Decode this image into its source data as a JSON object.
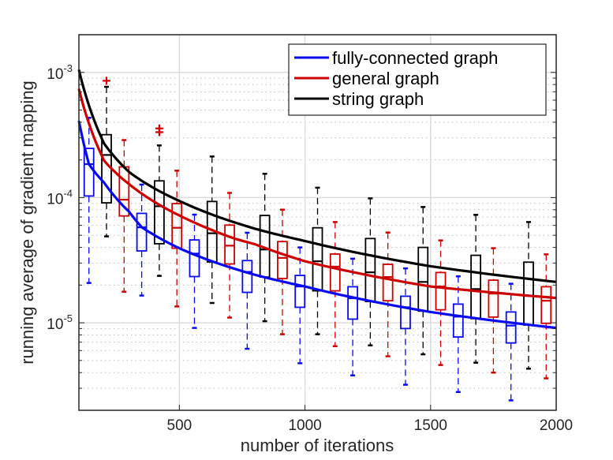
{
  "chart_data": {
    "type": "box",
    "xlabel": "number of iterations",
    "ylabel": "running average of gradient mapping",
    "xlim": [
      100,
      2000
    ],
    "ylim": [
      2e-06,
      0.002
    ],
    "yscale": "log",
    "grid": "major solid, minor dotted",
    "legend_placement": "top-right",
    "x_ticks": [
      500,
      1000,
      1500,
      2000
    ],
    "x_tick_labels": [
      "500",
      "1000",
      "1500",
      "2000"
    ],
    "y_ticks": [
      1e-05,
      0.0001,
      0.001
    ],
    "y_tick_labels": [
      {
        "base": "10",
        "exp": "-5"
      },
      {
        "base": "10",
        "exp": "-4"
      },
      {
        "base": "10",
        "exp": "-3"
      }
    ],
    "outlier_color": "#d40000",
    "series": [
      {
        "name": "fully-connected graph",
        "color": "#0a0aee",
        "curve": {
          "x": [
            100,
            140,
            200,
            300,
            350,
            500,
            560,
            800,
            1000,
            1500,
            2000
          ],
          "y": [
            0.00041,
            0.000185,
            0.000132,
            7.7e-05,
            5.8e-05,
            3.94e-05,
            3.5e-05,
            2.42e-05,
            1.95e-05,
            1.22e-05,
            9.1e-06
          ]
        },
        "boxes": [
          {
            "x": 140,
            "low": 2.08e-05,
            "q1": 0.000103,
            "median": 0.000185,
            "q3": 0.000247,
            "high": 0.000434,
            "outliers": []
          },
          {
            "x": 350,
            "low": 1.65e-05,
            "q1": 3.75e-05,
            "median": 5.79e-05,
            "q3": 7.48e-05,
            "high": 0.000127,
            "outliers": []
          },
          {
            "x": 560,
            "low": 9.1e-06,
            "q1": 2.34e-05,
            "median": 3.57e-05,
            "q3": 4.59e-05,
            "high": 7.31e-05,
            "outliers": []
          },
          {
            "x": 770,
            "low": 6.2e-06,
            "q1": 1.75e-05,
            "median": 2.55e-05,
            "q3": 3.14e-05,
            "high": 5.24e-05,
            "outliers": []
          },
          {
            "x": 980,
            "low": 4.75e-06,
            "q1": 1.33e-05,
            "median": 1.95e-05,
            "q3": 2.39e-05,
            "high": 4e-05,
            "outliers": []
          },
          {
            "x": 1190,
            "low": 3.8e-06,
            "q1": 1.07e-05,
            "median": 1.57e-05,
            "q3": 1.94e-05,
            "high": 3.25e-05,
            "outliers": []
          },
          {
            "x": 1400,
            "low": 3.2e-06,
            "q1": 9e-06,
            "median": 1.33e-05,
            "q3": 1.63e-05,
            "high": 2.72e-05,
            "outliers": []
          },
          {
            "x": 1610,
            "low": 2.8e-06,
            "q1": 7.7e-06,
            "median": 1.12e-05,
            "q3": 1.41e-05,
            "high": 2.35e-05,
            "outliers": []
          },
          {
            "x": 1820,
            "low": 2.4e-06,
            "q1": 6.9e-06,
            "median": 9.5e-06,
            "q3": 1.22e-05,
            "high": 2.05e-05,
            "outliers": []
          }
        ]
      },
      {
        "name": "general graph",
        "color": "#cc0000",
        "curve": {
          "x": [
            100,
            200,
            300,
            500,
            728,
            800,
            1000,
            1500,
            2000
          ],
          "y": [
            0.00074,
            0.000198,
            0.000128,
            7.2e-05,
            4.65e-05,
            4.25e-05,
            3.1e-05,
            1.95e-05,
            1.58e-05
          ]
        },
        "boxes": [
          {
            "x": 280,
            "low": 1.77e-05,
            "q1": 7.14e-05,
            "median": 9.62e-05,
            "q3": 0.000176,
            "high": 0.000288,
            "outliers": []
          },
          {
            "x": 490,
            "low": 1.35e-05,
            "q1": 3.94e-05,
            "median": 5.74e-05,
            "q3": 8.95e-05,
            "high": 0.000164,
            "outliers": []
          },
          {
            "x": 700,
            "low": 1.1e-05,
            "q1": 2.95e-05,
            "median": 4.13e-05,
            "q3": 6.03e-05,
            "high": 0.000109,
            "outliers": []
          },
          {
            "x": 910,
            "low": 8.1e-06,
            "q1": 2.26e-05,
            "median": 3.3e-05,
            "q3": 4.45e-05,
            "high": 8.01e-05,
            "outliers": []
          },
          {
            "x": 1120,
            "low": 6.5e-06,
            "q1": 1.8e-05,
            "median": 2.81e-05,
            "q3": 3.54e-05,
            "high": 6.38e-05,
            "outliers": []
          },
          {
            "x": 1330,
            "low": 5.4e-06,
            "q1": 1.5e-05,
            "median": 2.32e-05,
            "q3": 2.93e-05,
            "high": 5.26e-05,
            "outliers": []
          },
          {
            "x": 1540,
            "low": 4.6e-06,
            "q1": 1.27e-05,
            "median": 1.95e-05,
            "q3": 2.52e-05,
            "high": 4.55e-05,
            "outliers": []
          },
          {
            "x": 1750,
            "low": 4e-06,
            "q1": 1.11e-05,
            "median": 1.71e-05,
            "q3": 2.19e-05,
            "high": 3.94e-05,
            "outliers": []
          },
          {
            "x": 1960,
            "low": 3.6e-06,
            "q1": 9.9e-06,
            "median": 1.5e-05,
            "q3": 1.94e-05,
            "high": 3.52e-05,
            "outliers": []
          }
        ]
      },
      {
        "name": "string graph",
        "color": "#000000",
        "curve": {
          "x": [
            100,
            200,
            300,
            500,
            800,
            1000,
            1500,
            2000
          ],
          "y": [
            0.00105,
            0.000271,
            0.00016,
            9.4e-05,
            5.65e-05,
            4.5e-05,
            2.83e-05,
            2.12e-05
          ]
        },
        "boxes": [
          {
            "x": 210,
            "low": 4.9e-05,
            "q1": 9.08e-05,
            "median": 0.000219,
            "q3": 0.000318,
            "high": 0.000767,
            "outliers": [
              0.000857
            ]
          },
          {
            "x": 420,
            "low": 2.37e-05,
            "q1": 4.28e-05,
            "median": 8.53e-05,
            "q3": 0.000136,
            "high": 0.000261,
            "outliers": [
              0.000357,
              0.000333
            ]
          },
          {
            "x": 630,
            "low": 1.44e-05,
            "q1": 3.06e-05,
            "median": 5.19e-05,
            "q3": 9.31e-05,
            "high": 0.000213,
            "outliers": []
          },
          {
            "x": 840,
            "low": 1.03e-05,
            "q1": 2.32e-05,
            "median": 3.85e-05,
            "q3": 7.2e-05,
            "high": 0.000155,
            "outliers": []
          },
          {
            "x": 1050,
            "low": 8.1e-06,
            "q1": 1.8e-05,
            "median": 3.1e-05,
            "q3": 5.74e-05,
            "high": 0.00012,
            "outliers": []
          },
          {
            "x": 1260,
            "low": 6.6e-06,
            "q1": 1.48e-05,
            "median": 2.53e-05,
            "q3": 4.71e-05,
            "high": 9.86e-05,
            "outliers": []
          },
          {
            "x": 1470,
            "low": 5.6e-06,
            "q1": 1.24e-05,
            "median": 2.12e-05,
            "q3": 4e-05,
            "high": 8.41e-05,
            "outliers": []
          },
          {
            "x": 1680,
            "low": 4.8e-06,
            "q1": 1.08e-05,
            "median": 1.86e-05,
            "q3": 3.46e-05,
            "high": 7.28e-05,
            "outliers": []
          },
          {
            "x": 1890,
            "low": 4.3e-06,
            "q1": 9.6e-06,
            "median": 1.64e-05,
            "q3": 3.05e-05,
            "high": 6.38e-05,
            "outliers": []
          }
        ]
      }
    ]
  }
}
